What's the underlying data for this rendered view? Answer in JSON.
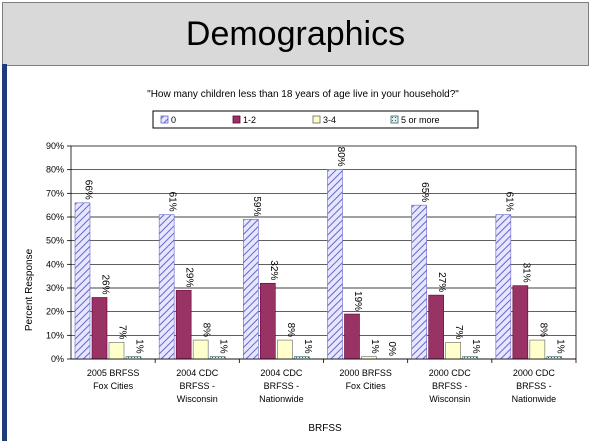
{
  "slide_title": "Demographics",
  "chart_data": {
    "type": "bar",
    "title": "\"How many children less than 18 years of age live in your household?\"",
    "xlabel": "BRFSS",
    "ylabel": "Percent Response",
    "ylim": [
      0,
      90
    ],
    "yticks": [
      "0%",
      "10%",
      "20%",
      "30%",
      "40%",
      "50%",
      "60%",
      "70%",
      "80%",
      "90%"
    ],
    "grid": true,
    "legend_position": "top",
    "categories": [
      [
        "2005 BRFSS",
        "Fox Cities"
      ],
      [
        "2004 CDC",
        "BRFSS -",
        "Wisconsin"
      ],
      [
        "2004 CDC",
        "BRFSS -",
        "Nationwide"
      ],
      [
        "2000 BRFSS",
        "Fox Cities"
      ],
      [
        "2000 CDC",
        "BRFSS -",
        "Wisconsin"
      ],
      [
        "2000 CDC",
        "BRFSS -",
        "Nationwide"
      ]
    ],
    "series": [
      {
        "name": "0",
        "values": [
          66,
          61,
          59,
          80,
          65,
          61
        ],
        "labels": [
          "66%",
          "61%",
          "59%",
          "80%",
          "65%",
          "61%"
        ],
        "fill": "#ccccff",
        "stroke": "#6666cc",
        "pattern": "diagonal"
      },
      {
        "name": "1-2",
        "values": [
          26,
          29,
          32,
          19,
          27,
          31
        ],
        "labels": [
          "26%",
          "29%",
          "32%",
          "19%",
          "27%",
          "31%"
        ],
        "fill": "#993366",
        "stroke": "#660033",
        "pattern": "solid"
      },
      {
        "name": "3-4",
        "values": [
          7,
          8,
          8,
          1,
          7,
          8
        ],
        "labels": [
          "7%",
          "8%",
          "8%",
          "1%",
          "7%",
          "8%"
        ],
        "fill": "#ffffcc",
        "stroke": "#666666",
        "pattern": "solid"
      },
      {
        "name": "5 or more",
        "values": [
          1,
          1,
          1,
          0,
          1,
          1
        ],
        "labels": [
          "1%",
          "1%",
          "1%",
          "0%",
          "1%",
          "1%"
        ],
        "fill": "#cce6e6",
        "stroke": "#336666",
        "pattern": "dotted"
      }
    ]
  }
}
